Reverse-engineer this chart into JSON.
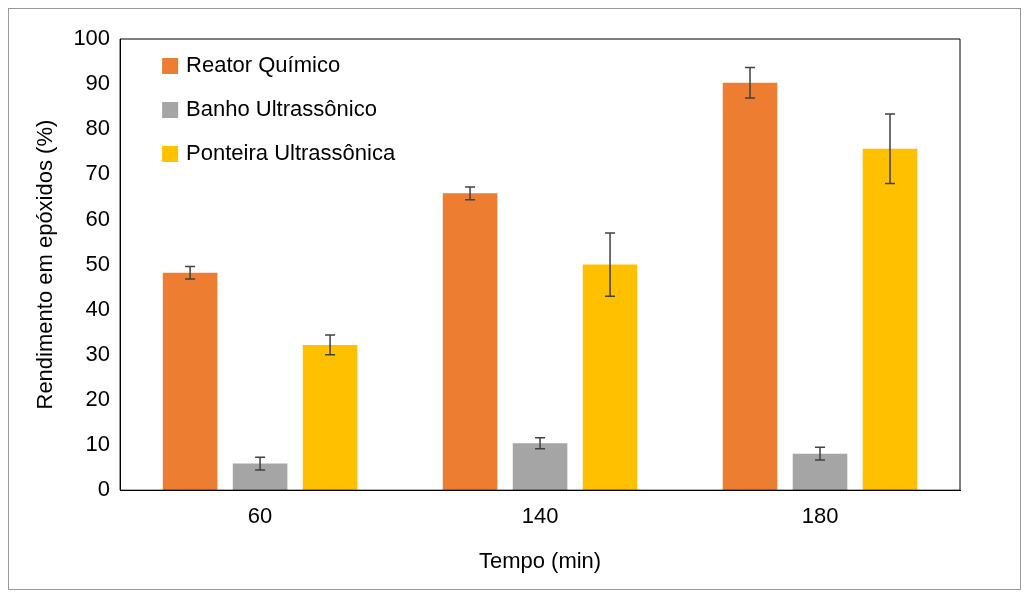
{
  "chart_data": {
    "type": "bar",
    "xlabel": "Tempo (min)",
    "ylabel": "Rendimento em epóxidos (%)",
    "categories": [
      "60",
      "140",
      "180"
    ],
    "series": [
      {
        "name": "Reator Químico",
        "color": "#ed7d31",
        "values": [
          48.2,
          65.8,
          90.3
        ],
        "errors": [
          1.4,
          1.4,
          3.4
        ]
      },
      {
        "name": "Banho Ultrassônico",
        "color": "#a5a5a5",
        "values": [
          5.9,
          10.4,
          8.1
        ],
        "errors": [
          1.4,
          1.2,
          1.4
        ]
      },
      {
        "name": "Ponteira Ultrassônica",
        "color": "#ffc000",
        "values": [
          32.2,
          50.0,
          75.7
        ],
        "errors": [
          2.2,
          7,
          7.7
        ]
      }
    ],
    "ylim": [
      0,
      100
    ],
    "yticks": [
      0,
      10,
      20,
      30,
      40,
      50,
      60,
      70,
      80,
      90,
      100
    ],
    "grid": false,
    "legend": "top left"
  }
}
